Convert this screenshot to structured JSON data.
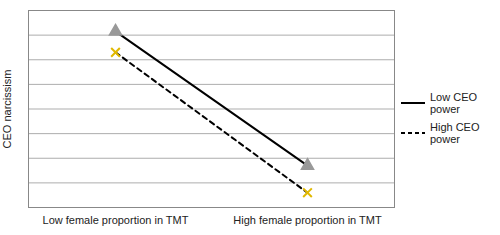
{
  "chart_data": {
    "type": "line",
    "ylabel": "CEO narcissism",
    "categories": [
      "Low female proportion in TMT",
      "High female proportion in TMT"
    ],
    "series": [
      {
        "name": "Low CEO power",
        "color": "#000000",
        "values": [
          7.15,
          1.7
        ],
        "marker": "triangle",
        "line_style": "solid"
      },
      {
        "name": "High CEO power",
        "color": "#000000",
        "values": [
          6.3,
          0.6
        ],
        "marker": "x",
        "line_style": "dashed"
      }
    ],
    "ylim": [
      0,
      8
    ],
    "yticks": [
      0,
      1,
      2,
      3,
      4,
      5,
      6,
      7,
      8
    ],
    "grid": true,
    "legend": "right",
    "tick_labels": "x"
  }
}
